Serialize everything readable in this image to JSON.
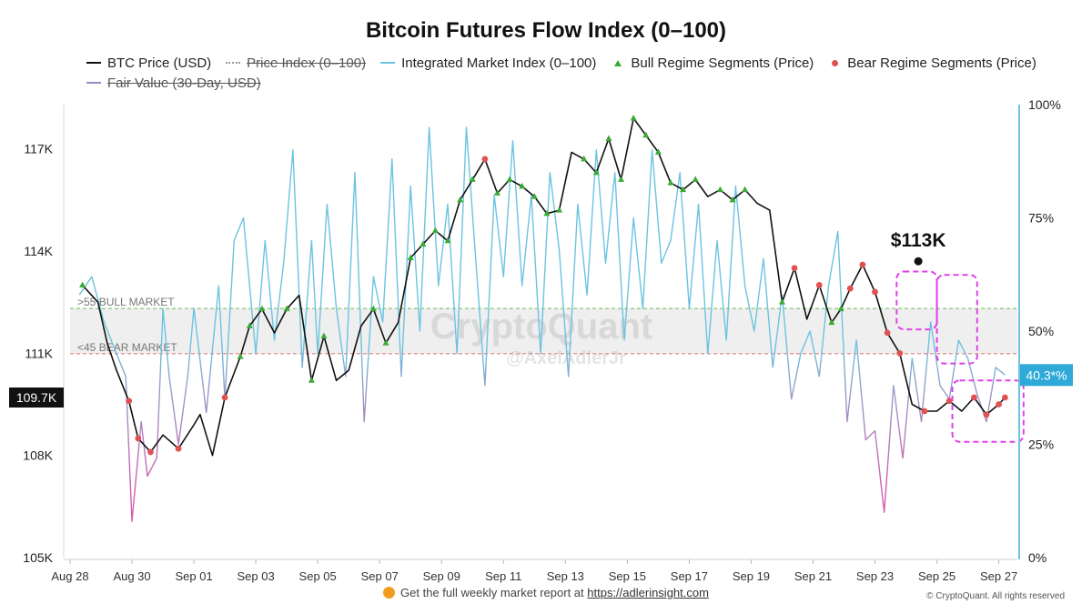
{
  "chart_data": {
    "type": "line",
    "title": "Bitcoin Futures Flow Index (0–100)",
    "legend": [
      {
        "label": "BTC Price (USD)",
        "style": "line",
        "color": "#111111",
        "active": true
      },
      {
        "label": "Price Index (0–100)",
        "style": "dotted",
        "color": "#999999",
        "active": false
      },
      {
        "label": "Integrated Market Index (0–100)",
        "style": "line",
        "color": "#6cc3e0",
        "active": true
      },
      {
        "label": "Bull Regime Segments (Price)",
        "style": "triangle",
        "color": "#3aaa35",
        "active": true
      },
      {
        "label": "Bear Regime Segments (Price)",
        "style": "circle",
        "color": "#e05252",
        "active": true
      },
      {
        "label": "Fair Value (30-Day, USD)",
        "style": "line",
        "color": "#8f8fc2",
        "active": false
      }
    ],
    "x_labels": [
      "Aug 28",
      "Aug 30",
      "Sep 01",
      "Sep 03",
      "Sep 05",
      "Sep 07",
      "Sep 09",
      "Sep 11",
      "Sep 13",
      "Sep 15",
      "Sep 17",
      "Sep 19",
      "Sep 21",
      "Sep 23",
      "Sep 25",
      "Sep 27"
    ],
    "x_range_days": [
      0,
      30.6
    ],
    "y_left": {
      "ticks": [
        "105K",
        "108K",
        "111K",
        "114K",
        "117K"
      ],
      "range": [
        105000,
        118300
      ]
    },
    "y_right": {
      "ticks": [
        "0%",
        "25%",
        "50%",
        "75%",
        "100%"
      ],
      "range": [
        0,
        100
      ]
    },
    "bands": {
      "bull_label": ">55 BULL MARKET",
      "bull_level": 55,
      "bear_label": "<45 BEAR MARKET",
      "bear_level": 45
    },
    "btc_price": {
      "day": [
        0.4,
        0.9,
        1.2,
        1.5,
        1.9,
        2.2,
        2.6,
        3.0,
        3.5,
        4.0,
        4.2,
        4.6,
        5.0,
        5.5,
        5.8,
        6.2,
        6.6,
        7.0,
        7.4,
        7.8,
        8.2,
        8.6,
        9.0,
        9.4,
        9.8,
        10.2,
        10.6,
        11.0,
        11.4,
        11.8,
        12.2,
        12.6,
        13.0,
        13.4,
        13.8,
        14.2,
        14.6,
        15.0,
        15.4,
        15.8,
        16.2,
        16.6,
        17.0,
        17.4,
        17.8,
        18.2,
        18.6,
        19.0,
        19.4,
        19.8,
        20.2,
        20.6,
        21.0,
        21.4,
        21.8,
        22.2,
        22.6,
        23.0,
        23.4,
        23.8,
        24.2,
        24.6,
        24.9,
        25.2,
        25.6,
        26.0,
        26.4,
        26.8,
        27.2,
        27.6,
        28.0,
        28.4,
        28.8,
        29.2,
        29.6,
        30.0,
        30.2
      ],
      "price": [
        113000,
        112500,
        111300,
        110500,
        109600,
        108500,
        108100,
        108600,
        108200,
        108900,
        109200,
        108000,
        109700,
        110900,
        111800,
        112300,
        111600,
        112300,
        112700,
        110200,
        111500,
        110200,
        110500,
        111800,
        112300,
        111300,
        111900,
        113800,
        114200,
        114600,
        114300,
        115500,
        116100,
        116700,
        115700,
        116100,
        115900,
        115600,
        115100,
        115200,
        116900,
        116700,
        116300,
        117300,
        116100,
        117900,
        117400,
        116900,
        116000,
        115800,
        116100,
        115600,
        115800,
        115500,
        115800,
        115400,
        115200,
        112500,
        113500,
        112000,
        113000,
        111900,
        112300,
        112900,
        113600,
        112800,
        111600,
        111000,
        109500,
        109300,
        109300,
        109600,
        109300,
        109700,
        109200,
        109500,
        109700
      ]
    },
    "market_index": {
      "day": [
        0.3,
        0.7,
        1.1,
        1.5,
        1.8,
        2.0,
        2.3,
        2.5,
        2.8,
        3.0,
        3.2,
        3.5,
        3.8,
        4.0,
        4.4,
        4.8,
        5.0,
        5.3,
        5.6,
        6.0,
        6.3,
        6.6,
        6.9,
        7.2,
        7.5,
        7.8,
        8.0,
        8.3,
        8.6,
        8.9,
        9.2,
        9.5,
        9.8,
        10.1,
        10.4,
        10.7,
        11.0,
        11.3,
        11.6,
        11.9,
        12.2,
        12.5,
        12.8,
        13.1,
        13.4,
        13.7,
        14.0,
        14.3,
        14.6,
        14.9,
        15.2,
        15.5,
        15.8,
        16.1,
        16.4,
        16.7,
        17.0,
        17.3,
        17.6,
        17.9,
        18.2,
        18.5,
        18.8,
        19.1,
        19.4,
        19.7,
        20.0,
        20.3,
        20.6,
        20.9,
        21.2,
        21.5,
        21.8,
        22.1,
        22.4,
        22.7,
        23.0,
        23.3,
        23.6,
        23.9,
        24.2,
        24.5,
        24.8,
        25.1,
        25.4,
        25.7,
        26.0,
        26.3,
        26.6,
        26.9,
        27.2,
        27.5,
        27.8,
        28.1,
        28.4,
        28.7,
        29.0,
        29.3,
        29.6,
        29.9,
        30.2
      ],
      "value": [
        58,
        62,
        52,
        45,
        40,
        8,
        30,
        18,
        22,
        55,
        40,
        25,
        40,
        55,
        32,
        60,
        35,
        70,
        75,
        45,
        70,
        48,
        65,
        90,
        42,
        70,
        45,
        78,
        55,
        40,
        85,
        30,
        62,
        52,
        88,
        40,
        82,
        50,
        95,
        60,
        78,
        45,
        95,
        66,
        38,
        80,
        62,
        92,
        60,
        80,
        45,
        85,
        68,
        40,
        78,
        58,
        90,
        65,
        85,
        48,
        75,
        55,
        90,
        65,
        70,
        85,
        55,
        78,
        45,
        70,
        48,
        82,
        60,
        50,
        66,
        42,
        58,
        35,
        45,
        50,
        40,
        60,
        72,
        30,
        48,
        26,
        28,
        10,
        38,
        22,
        44,
        30,
        52,
        38,
        35,
        48,
        44,
        36,
        30,
        42,
        40.3
      ]
    },
    "current": {
      "price_label": "109.7K",
      "index_label": "40.3*%"
    },
    "annotations": [
      {
        "text": "$113K",
        "day": 27.4,
        "price": 113700
      }
    ],
    "highlight_boxes": [
      {
        "from_day": 26.7,
        "to_day": 28.0,
        "from_price": 111700,
        "to_price": 113400
      },
      {
        "from_day": 28.0,
        "to_day": 29.3,
        "from_price": 110700,
        "to_price": 113300
      },
      {
        "from_day": 28.5,
        "to_day": 30.8,
        "from_price": 108400,
        "to_price": 110200
      }
    ],
    "watermark": {
      "brand": "CryptoQuant",
      "handle": "@AxelAdlerJr"
    }
  },
  "footer": {
    "text": "Get the full weekly market report at",
    "link": "https://adlerinsight.com",
    "copyright": "© CryptoQuant. All rights reserved"
  }
}
